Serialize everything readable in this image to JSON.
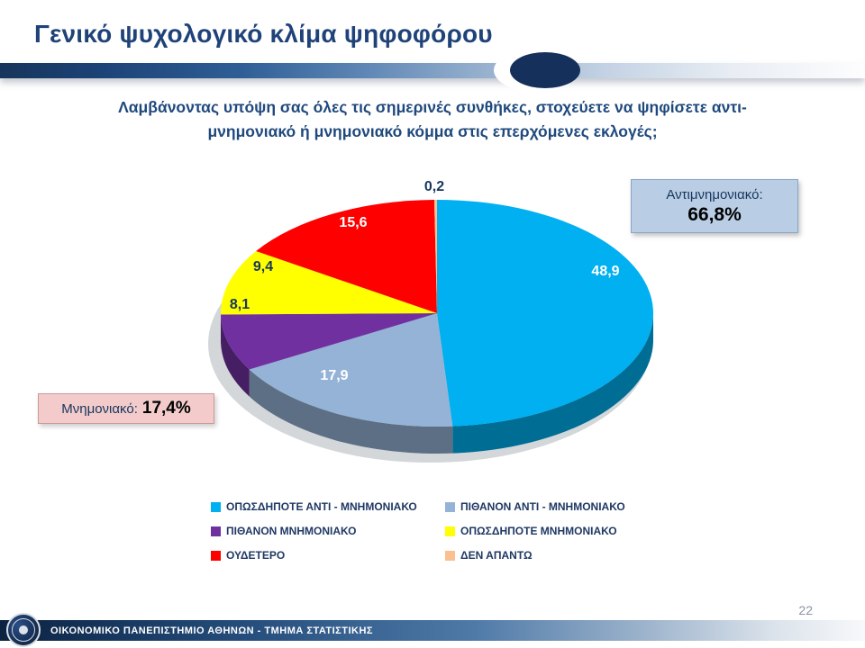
{
  "slide": {
    "title": "Γενικό ψυχολογικό κλίμα ψηφοφόρου",
    "question": "Λαμβάνοντας υπόψη σας όλες τις σημερινές συνθήκες, στοχεύετε να ψηφίσετε αντι-μνημονιακό ή μνημονιακό κόμμα στις επερχόμενες εκλογές;",
    "page_number": "22",
    "footer_text": "ΟΙΚΟΝΟΜΙΚΟ ΠΑΝΕΠΙΣΤΗΜΙΟ ΑΘΗΝΩΝ - ΤΜΗΜΑ ΣΤΑΤΙΣΤΙΚΗΣ",
    "accent_color": "#1F497D"
  },
  "callouts": {
    "anti": {
      "label": "Αντιμνημονιακό:",
      "value": "66,8%",
      "bg": "#B9CDE5"
    },
    "pro": {
      "label": "Μνημονιακό:",
      "value": "17,4%",
      "bg": "#F3CBCB"
    }
  },
  "chart_data": {
    "type": "pie",
    "style": "3d",
    "unit": "%",
    "start_angle_deg": -90,
    "direction": "clockwise",
    "legend_position": "bottom",
    "slices": [
      {
        "label": "ΟΠΩΣΔΗΠΟΤΕ ΑΝΤΙ - ΜΝΗΜΟΝΙΑΚΟ",
        "value": 48.9,
        "display": "48,9",
        "color": "#00B0F0"
      },
      {
        "label": "ΠΙΘΑΝΟΝ ΑΝΤΙ - ΜΝΗΜΟΝΙΑΚΟ",
        "value": 17.9,
        "display": "17,9",
        "color": "#95B3D7"
      },
      {
        "label": "ΠΙΘΑΝΟΝ ΜΝΗΜΟΝΙΑΚΟ",
        "value": 8.1,
        "display": "8,1",
        "color": "#7030A0"
      },
      {
        "label": "ΟΠΩΣΔΗΠΟΤΕ ΜΝΗΜΟΝΙΑΚΟ",
        "value": 9.4,
        "display": "9,4",
        "color": "#FFFF00"
      },
      {
        "label": "ΟΥΔΕΤΕΡΟ",
        "value": 15.6,
        "display": "15,6",
        "color": "#FF0000"
      },
      {
        "label": "ΔΕΝ ΑΠΑΝΤΩ",
        "value": 0.2,
        "display": "0,2",
        "color": "#FAC090"
      }
    ]
  }
}
